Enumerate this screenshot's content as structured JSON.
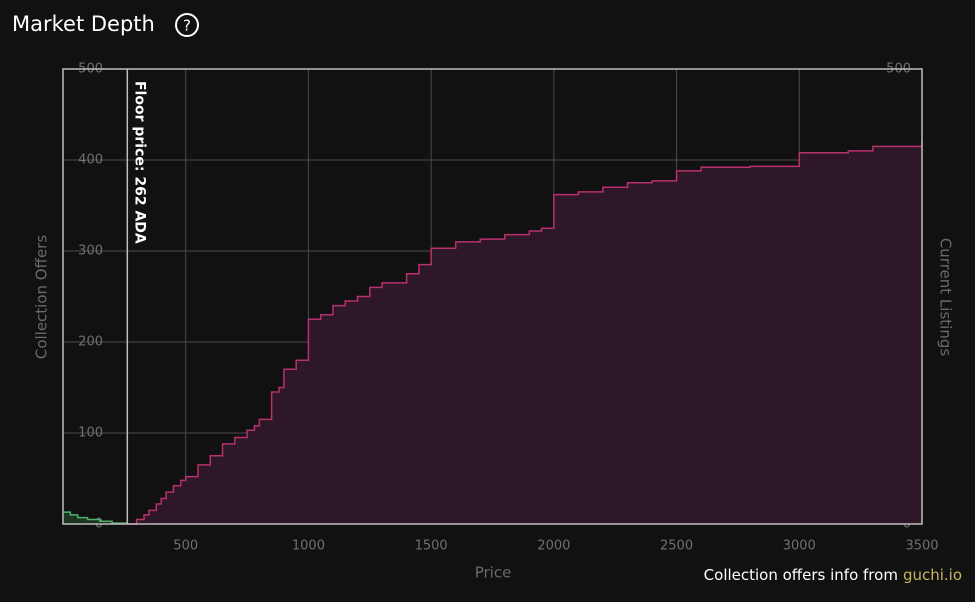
{
  "chart_data": {
    "type": "area",
    "step": "post",
    "title": "Market Depth",
    "help_icon": "?",
    "xlabel": "Price",
    "ylabel": "Collection Offers",
    "y2label": "Current Listings",
    "xlim": [
      0,
      3500
    ],
    "xticks": [
      500,
      1000,
      1500,
      2000,
      2500,
      3000,
      3500
    ],
    "ylim": [
      0,
      500
    ],
    "yticks": [
      0,
      100,
      200,
      300,
      400,
      500
    ],
    "y2lim": [
      0,
      500
    ],
    "y2ticks": [
      0,
      100,
      200,
      300,
      400,
      500
    ],
    "grid": true,
    "series": [
      {
        "name": "Collection Offers",
        "color": "#4fb06c",
        "fill": "#1d3324",
        "x": [
          0,
          30,
          60,
          100,
          150,
          200,
          262
        ],
        "values": [
          13,
          10,
          7,
          5,
          3,
          1,
          0
        ]
      },
      {
        "name": "Current Listings",
        "axis": "y2",
        "color": "#b8306c",
        "fill": "#2e1828",
        "x": [
          262,
          300,
          330,
          350,
          380,
          400,
          420,
          450,
          480,
          500,
          550,
          600,
          650,
          700,
          750,
          780,
          800,
          850,
          880,
          900,
          950,
          1000,
          1050,
          1100,
          1150,
          1200,
          1250,
          1300,
          1400,
          1450,
          1500,
          1600,
          1700,
          1800,
          1900,
          1950,
          2000,
          2100,
          2200,
          2300,
          2400,
          2500,
          2600,
          2800,
          3000,
          3200,
          3300,
          3500
        ],
        "values": [
          0,
          5,
          10,
          15,
          22,
          28,
          35,
          42,
          48,
          52,
          65,
          75,
          88,
          95,
          103,
          108,
          115,
          145,
          150,
          170,
          180,
          225,
          230,
          240,
          245,
          250,
          260,
          265,
          275,
          285,
          303,
          310,
          313,
          318,
          322,
          325,
          362,
          365,
          370,
          375,
          377,
          388,
          392,
          393,
          408,
          410,
          415,
          420
        ]
      }
    ],
    "annotations": [
      {
        "text": "Floor price: 262 ADA",
        "x": 262
      }
    ],
    "footer": {
      "text": "Collection offers info from",
      "link": "guchi.io"
    }
  }
}
